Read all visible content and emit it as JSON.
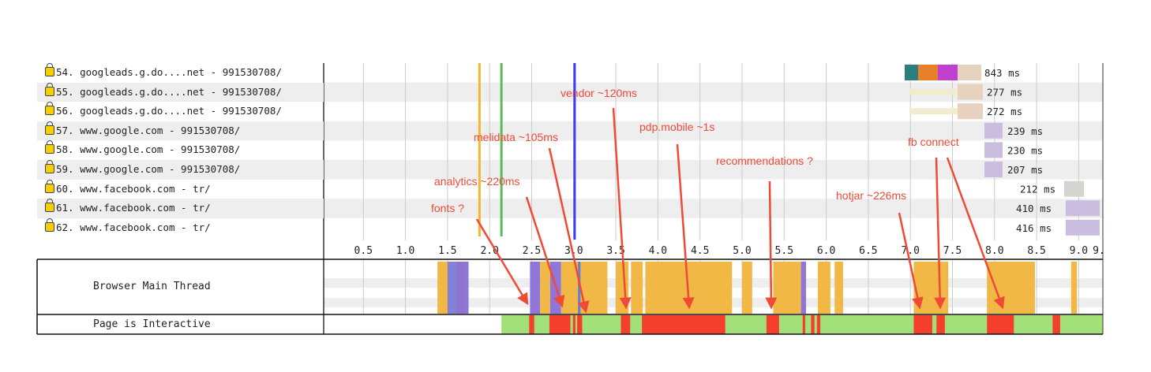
{
  "requests": [
    {
      "label": "54. googleads.g.do....net - 991530708/",
      "duration": "843 ms"
    },
    {
      "label": "55. googleads.g.do....net - 991530708/",
      "duration": "277 ms"
    },
    {
      "label": "56. googleads.g.do....net - 991530708/",
      "duration": "272 ms"
    },
    {
      "label": "57. www.google.com - 991530708/",
      "duration": "239 ms"
    },
    {
      "label": "58. www.google.com - 991530708/",
      "duration": "230 ms"
    },
    {
      "label": "59. www.google.com - 991530708/",
      "duration": "207 ms"
    },
    {
      "label": "60. www.facebook.com - tr/",
      "duration": "212 ms"
    },
    {
      "label": "61. www.facebook.com - tr/",
      "duration": "410 ms"
    },
    {
      "label": "62. www.facebook.com - tr/",
      "duration": "416 ms"
    }
  ],
  "axis_ticks": [
    "0.5",
    "1.0",
    "1.5",
    "2.0",
    "2.5",
    "3.0",
    "3.5",
    "4.0",
    "4.5",
    "5.0",
    "5.5",
    "6.0",
    "6.5",
    "7.0",
    "7.5",
    "8.0",
    "8.5",
    "9.0",
    "9."
  ],
  "rows": {
    "main_thread": "Browser Main Thread",
    "interactive": "Page is Interactive"
  },
  "markers": [
    {
      "time": 1.88,
      "color": "#f5b731"
    },
    {
      "time": 2.14,
      "color": "#5cb85c"
    },
    {
      "time": 3.01,
      "color": "#3b3bf0"
    }
  ],
  "interactive_start": 2.14,
  "blocked_ranges": [
    [
      2.47,
      2.53
    ],
    [
      2.71,
      2.96
    ],
    [
      2.99,
      3.02
    ],
    [
      3.04,
      3.1
    ],
    [
      3.56,
      3.67
    ],
    [
      3.81,
      4.8
    ],
    [
      5.29,
      5.44
    ],
    [
      5.72,
      5.75
    ],
    [
      5.82,
      5.86
    ],
    [
      5.89,
      5.93
    ],
    [
      7.04,
      7.26
    ],
    [
      7.31,
      7.41
    ],
    [
      7.91,
      8.23
    ],
    [
      8.69,
      8.78
    ]
  ],
  "main_thread_activity": [
    [
      1.38,
      1.7,
      "#f0b43c"
    ],
    [
      1.5,
      1.6,
      "#7a7ee0"
    ],
    [
      1.6,
      1.75,
      "#8a6fd8"
    ],
    [
      2.48,
      2.6,
      "#8a6fd8"
    ],
    [
      2.6,
      2.72,
      "#f0b43c"
    ],
    [
      2.72,
      2.85,
      "#8a6fd8"
    ],
    [
      2.85,
      3.4,
      "#f0b43c"
    ],
    [
      3.05,
      3.08,
      "#5a7de0"
    ],
    [
      3.5,
      3.65,
      "#f0b43c"
    ],
    [
      3.68,
      3.82,
      "#f0b43c"
    ],
    [
      3.85,
      4.88,
      "#f0b43c"
    ],
    [
      5.0,
      5.12,
      "#f0b43c"
    ],
    [
      5.37,
      5.7,
      "#f0b43c"
    ],
    [
      5.7,
      5.76,
      "#8a6fd8"
    ],
    [
      5.9,
      6.05,
      "#f0b43c"
    ],
    [
      6.1,
      6.2,
      "#f0b43c"
    ],
    [
      7.04,
      7.4,
      "#f0b43c"
    ],
    [
      7.4,
      7.45,
      "#f0b43c"
    ],
    [
      7.91,
      8.48,
      "#f0b43c"
    ],
    [
      8.91,
      8.98,
      "#f0b43c"
    ]
  ],
  "annotations": [
    {
      "text": "fonts ?"
    },
    {
      "text": "analytics ~220ms"
    },
    {
      "text": "melidata ~105ms"
    },
    {
      "text": "vendor ~120ms"
    },
    {
      "text": "pdp.mobile ~1s"
    },
    {
      "text": "recommendations  ?"
    },
    {
      "text": "hotjar ~226ms"
    },
    {
      "text": "fb connect"
    }
  ],
  "colors": {
    "green": "#a3e07a",
    "red": "#f43f2c",
    "annotation": "#ef4a36"
  }
}
